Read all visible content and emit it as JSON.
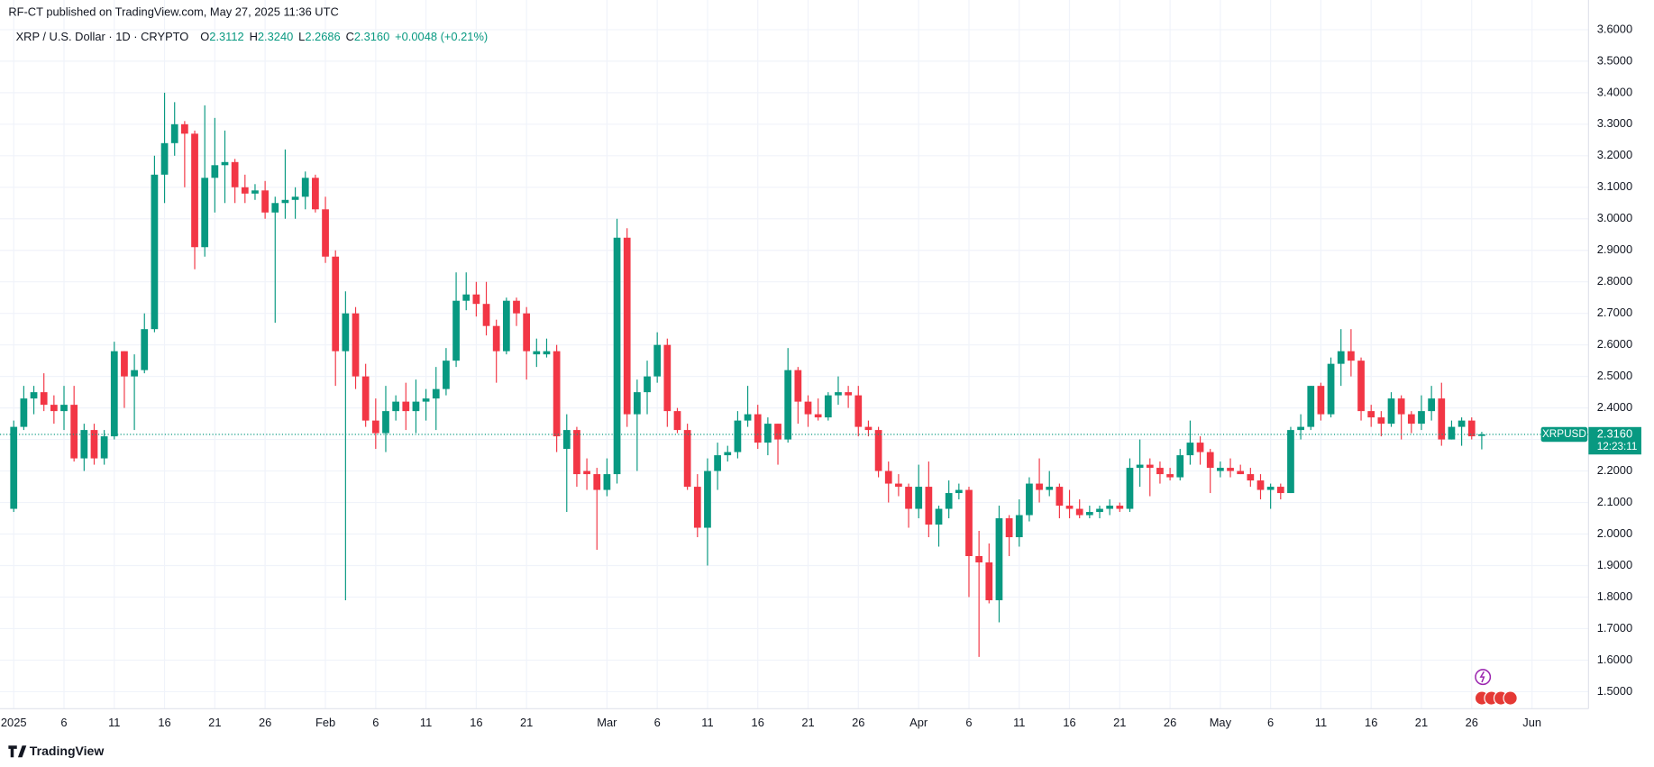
{
  "header": {
    "published": "RF-CT published on TradingView.com, May 27, 2025 11:36 UTC",
    "brand": "TradingView"
  },
  "chart_data": {
    "type": "candlestick",
    "symbol": "XRP / U.S. Dollar · 1D · CRYPTO",
    "legend_items": [
      {
        "key": "O",
        "value": "2.3112"
      },
      {
        "key": "H",
        "value": "2.3240"
      },
      {
        "key": "L",
        "value": "2.2686"
      },
      {
        "key": "C",
        "value": "2.3160"
      }
    ],
    "change": "+0.0048 (+0.21%)",
    "up_color": "#089981",
    "down_color": "#f23645",
    "last_price": {
      "value": 2.316,
      "label": "2.3160"
    },
    "symbol_tag": "XRPUSD",
    "countdown": "12:23:11",
    "grid": true,
    "ylim": [
      1.446,
      3.694
    ],
    "yticks": [
      {
        "value": 1.5,
        "label": "1.5000"
      },
      {
        "value": 1.6,
        "label": "1.6000"
      },
      {
        "value": 1.7,
        "label": "1.7000"
      },
      {
        "value": 1.8,
        "label": "1.8000"
      },
      {
        "value": 1.9,
        "label": "1.9000"
      },
      {
        "value": 2.0,
        "label": "2.0000"
      },
      {
        "value": 2.1,
        "label": "2.1000"
      },
      {
        "value": 2.2,
        "label": "2.2000"
      },
      {
        "value": 2.3,
        "label": "2.3000"
      },
      {
        "value": 2.4,
        "label": "2.4000"
      },
      {
        "value": 2.5,
        "label": "2.5000"
      },
      {
        "value": 2.6,
        "label": "2.6000"
      },
      {
        "value": 2.7,
        "label": "2.7000"
      },
      {
        "value": 2.8,
        "label": "2.8000"
      },
      {
        "value": 2.9,
        "label": "2.9000"
      },
      {
        "value": 3.0,
        "label": "3.0000"
      },
      {
        "value": 3.1,
        "label": "3.1000"
      },
      {
        "value": 3.2,
        "label": "3.2000"
      },
      {
        "value": 3.3,
        "label": "3.3000"
      },
      {
        "value": 3.4,
        "label": "3.4000"
      },
      {
        "value": 3.5,
        "label": "3.5000"
      },
      {
        "value": 3.6,
        "label": "3.6000"
      }
    ],
    "xticks": [
      {
        "value": "2025-01-01",
        "label": "2025"
      },
      {
        "value": "2025-01-06",
        "label": "6"
      },
      {
        "value": "2025-01-11",
        "label": "11"
      },
      {
        "value": "2025-01-16",
        "label": "16"
      },
      {
        "value": "2025-01-21",
        "label": "21"
      },
      {
        "value": "2025-01-26",
        "label": "26"
      },
      {
        "value": "2025-02-01",
        "label": "Feb"
      },
      {
        "value": "2025-02-06",
        "label": "6"
      },
      {
        "value": "2025-02-11",
        "label": "11"
      },
      {
        "value": "2025-02-16",
        "label": "16"
      },
      {
        "value": "2025-02-21",
        "label": "21"
      },
      {
        "value": "2025-03-01",
        "label": "Mar"
      },
      {
        "value": "2025-03-06",
        "label": "6"
      },
      {
        "value": "2025-03-11",
        "label": "11"
      },
      {
        "value": "2025-03-16",
        "label": "16"
      },
      {
        "value": "2025-03-21",
        "label": "21"
      },
      {
        "value": "2025-03-26",
        "label": "26"
      },
      {
        "value": "2025-04-01",
        "label": "Apr"
      },
      {
        "value": "2025-04-06",
        "label": "6"
      },
      {
        "value": "2025-04-11",
        "label": "11"
      },
      {
        "value": "2025-04-16",
        "label": "16"
      },
      {
        "value": "2025-04-21",
        "label": "21"
      },
      {
        "value": "2025-04-26",
        "label": "26"
      },
      {
        "value": "2025-05-01",
        "label": "May"
      },
      {
        "value": "2025-05-06",
        "label": "6"
      },
      {
        "value": "2025-05-11",
        "label": "11"
      },
      {
        "value": "2025-05-16",
        "label": "16"
      },
      {
        "value": "2025-05-21",
        "label": "21"
      },
      {
        "value": "2025-05-26",
        "label": "26"
      },
      {
        "value": "2025-06-01",
        "label": "Jun"
      }
    ],
    "x": [
      "2025-01-01",
      "2025-01-02",
      "2025-01-03",
      "2025-01-04",
      "2025-01-05",
      "2025-01-06",
      "2025-01-07",
      "2025-01-08",
      "2025-01-09",
      "2025-01-10",
      "2025-01-11",
      "2025-01-12",
      "2025-01-13",
      "2025-01-14",
      "2025-01-15",
      "2025-01-16",
      "2025-01-17",
      "2025-01-18",
      "2025-01-19",
      "2025-01-20",
      "2025-01-21",
      "2025-01-22",
      "2025-01-23",
      "2025-01-24",
      "2025-01-25",
      "2025-01-26",
      "2025-01-27",
      "2025-01-28",
      "2025-01-29",
      "2025-01-30",
      "2025-01-31",
      "2025-02-01",
      "2025-02-02",
      "2025-02-03",
      "2025-02-04",
      "2025-02-05",
      "2025-02-06",
      "2025-02-07",
      "2025-02-08",
      "2025-02-09",
      "2025-02-10",
      "2025-02-11",
      "2025-02-12",
      "2025-02-13",
      "2025-02-14",
      "2025-02-15",
      "2025-02-16",
      "2025-02-17",
      "2025-02-18",
      "2025-02-19",
      "2025-02-20",
      "2025-02-21",
      "2025-02-22",
      "2025-02-23",
      "2025-02-24",
      "2025-02-25",
      "2025-02-26",
      "2025-02-27",
      "2025-02-28",
      "2025-03-01",
      "2025-03-02",
      "2025-03-03",
      "2025-03-04",
      "2025-03-05",
      "2025-03-06",
      "2025-03-07",
      "2025-03-08",
      "2025-03-09",
      "2025-03-10",
      "2025-03-11",
      "2025-03-12",
      "2025-03-13",
      "2025-03-14",
      "2025-03-15",
      "2025-03-16",
      "2025-03-17",
      "2025-03-18",
      "2025-03-19",
      "2025-03-20",
      "2025-03-21",
      "2025-03-22",
      "2025-03-23",
      "2025-03-24",
      "2025-03-25",
      "2025-03-26",
      "2025-03-27",
      "2025-03-28",
      "2025-03-29",
      "2025-03-30",
      "2025-03-31",
      "2025-04-01",
      "2025-04-02",
      "2025-04-03",
      "2025-04-04",
      "2025-04-05",
      "2025-04-06",
      "2025-04-07",
      "2025-04-08",
      "2025-04-09",
      "2025-04-10",
      "2025-04-11",
      "2025-04-12",
      "2025-04-13",
      "2025-04-14",
      "2025-04-15",
      "2025-04-16",
      "2025-04-17",
      "2025-04-18",
      "2025-04-19",
      "2025-04-20",
      "2025-04-21",
      "2025-04-22",
      "2025-04-23",
      "2025-04-24",
      "2025-04-25",
      "2025-04-26",
      "2025-04-27",
      "2025-04-28",
      "2025-04-29",
      "2025-04-30",
      "2025-05-01",
      "2025-05-02",
      "2025-05-03",
      "2025-05-04",
      "2025-05-05",
      "2025-05-06",
      "2025-05-07",
      "2025-05-08",
      "2025-05-09",
      "2025-05-10",
      "2025-05-11",
      "2025-05-12",
      "2025-05-13",
      "2025-05-14",
      "2025-05-15",
      "2025-05-16",
      "2025-05-17",
      "2025-05-18",
      "2025-05-19",
      "2025-05-20",
      "2025-05-21",
      "2025-05-22",
      "2025-05-23",
      "2025-05-24",
      "2025-05-25",
      "2025-05-26",
      "2025-05-27"
    ],
    "ohlc": [
      [
        2.08,
        2.36,
        2.07,
        2.34
      ],
      [
        2.34,
        2.47,
        2.33,
        2.43
      ],
      [
        2.43,
        2.47,
        2.38,
        2.45
      ],
      [
        2.45,
        2.51,
        2.39,
        2.41
      ],
      [
        2.41,
        2.44,
        2.35,
        2.39
      ],
      [
        2.39,
        2.47,
        2.33,
        2.41
      ],
      [
        2.41,
        2.47,
        2.23,
        2.24
      ],
      [
        2.24,
        2.35,
        2.2,
        2.33
      ],
      [
        2.33,
        2.35,
        2.22,
        2.24
      ],
      [
        2.24,
        2.33,
        2.22,
        2.31
      ],
      [
        2.31,
        2.61,
        2.3,
        2.58
      ],
      [
        2.58,
        2.58,
        2.4,
        2.5
      ],
      [
        2.5,
        2.57,
        2.33,
        2.52
      ],
      [
        2.52,
        2.7,
        2.51,
        2.65
      ],
      [
        2.65,
        3.2,
        2.64,
        3.14
      ],
      [
        3.14,
        3.4,
        3.05,
        3.24
      ],
      [
        3.24,
        3.37,
        3.2,
        3.3
      ],
      [
        3.3,
        3.31,
        3.1,
        3.27
      ],
      [
        3.27,
        3.28,
        2.84,
        2.91
      ],
      [
        2.91,
        3.36,
        2.88,
        3.13
      ],
      [
        3.13,
        3.32,
        3.02,
        3.17
      ],
      [
        3.17,
        3.28,
        3.05,
        3.18
      ],
      [
        3.18,
        3.19,
        3.05,
        3.1
      ],
      [
        3.1,
        3.14,
        3.05,
        3.08
      ],
      [
        3.08,
        3.11,
        3.06,
        3.09
      ],
      [
        3.09,
        3.12,
        3.0,
        3.02
      ],
      [
        3.02,
        3.07,
        2.67,
        3.05
      ],
      [
        3.05,
        3.22,
        3.0,
        3.06
      ],
      [
        3.06,
        3.1,
        3.0,
        3.07
      ],
      [
        3.07,
        3.15,
        3.03,
        3.13
      ],
      [
        3.13,
        3.14,
        3.02,
        3.03
      ],
      [
        3.03,
        3.07,
        2.86,
        2.88
      ],
      [
        2.88,
        2.9,
        2.47,
        2.58
      ],
      [
        2.58,
        2.77,
        1.79,
        2.7
      ],
      [
        2.7,
        2.72,
        2.46,
        2.5
      ],
      [
        2.5,
        2.54,
        2.34,
        2.36
      ],
      [
        2.36,
        2.43,
        2.27,
        2.32
      ],
      [
        2.32,
        2.47,
        2.26,
        2.39
      ],
      [
        2.39,
        2.44,
        2.36,
        2.42
      ],
      [
        2.42,
        2.48,
        2.33,
        2.39
      ],
      [
        2.39,
        2.49,
        2.32,
        2.42
      ],
      [
        2.42,
        2.46,
        2.36,
        2.43
      ],
      [
        2.43,
        2.53,
        2.33,
        2.46
      ],
      [
        2.46,
        2.59,
        2.44,
        2.55
      ],
      [
        2.55,
        2.83,
        2.53,
        2.74
      ],
      [
        2.74,
        2.83,
        2.71,
        2.76
      ],
      [
        2.76,
        2.8,
        2.69,
        2.73
      ],
      [
        2.73,
        2.8,
        2.63,
        2.66
      ],
      [
        2.66,
        2.68,
        2.48,
        2.58
      ],
      [
        2.58,
        2.75,
        2.57,
        2.74
      ],
      [
        2.74,
        2.75,
        2.66,
        2.7
      ],
      [
        2.7,
        2.72,
        2.49,
        2.58
      ],
      [
        2.57,
        2.62,
        2.53,
        2.58
      ],
      [
        2.57,
        2.62,
        2.56,
        2.58
      ],
      [
        2.58,
        2.6,
        2.26,
        2.31
      ],
      [
        2.27,
        2.38,
        2.07,
        2.33
      ],
      [
        2.33,
        2.34,
        2.15,
        2.19
      ],
      [
        2.2,
        2.24,
        2.14,
        2.19
      ],
      [
        2.19,
        2.21,
        1.95,
        2.14
      ],
      [
        2.14,
        2.24,
        2.12,
        2.19
      ],
      [
        2.19,
        3.0,
        2.16,
        2.94
      ],
      [
        2.94,
        2.97,
        2.34,
        2.38
      ],
      [
        2.38,
        2.49,
        2.2,
        2.45
      ],
      [
        2.45,
        2.55,
        2.38,
        2.5
      ],
      [
        2.5,
        2.64,
        2.48,
        2.6
      ],
      [
        2.6,
        2.62,
        2.34,
        2.39
      ],
      [
        2.39,
        2.4,
        2.32,
        2.33
      ],
      [
        2.33,
        2.35,
        2.14,
        2.15
      ],
      [
        2.15,
        2.19,
        1.99,
        2.02
      ],
      [
        2.02,
        2.24,
        1.9,
        2.2
      ],
      [
        2.2,
        2.29,
        2.14,
        2.25
      ],
      [
        2.25,
        2.28,
        2.23,
        2.26
      ],
      [
        2.26,
        2.39,
        2.24,
        2.36
      ],
      [
        2.36,
        2.47,
        2.34,
        2.38
      ],
      [
        2.38,
        2.41,
        2.27,
        2.29
      ],
      [
        2.29,
        2.37,
        2.25,
        2.35
      ],
      [
        2.35,
        2.35,
        2.22,
        2.3
      ],
      [
        2.3,
        2.59,
        2.29,
        2.52
      ],
      [
        2.52,
        2.53,
        2.35,
        2.42
      ],
      [
        2.42,
        2.44,
        2.34,
        2.38
      ],
      [
        2.38,
        2.43,
        2.36,
        2.37
      ],
      [
        2.37,
        2.45,
        2.36,
        2.44
      ],
      [
        2.44,
        2.5,
        2.41,
        2.45
      ],
      [
        2.45,
        2.47,
        2.4,
        2.44
      ],
      [
        2.44,
        2.47,
        2.31,
        2.34
      ],
      [
        2.34,
        2.36,
        2.31,
        2.33
      ],
      [
        2.33,
        2.34,
        2.18,
        2.2
      ],
      [
        2.2,
        2.23,
        2.1,
        2.16
      ],
      [
        2.16,
        2.19,
        2.12,
        2.15
      ],
      [
        2.15,
        2.16,
        2.02,
        2.08
      ],
      [
        2.08,
        2.22,
        2.05,
        2.15
      ],
      [
        2.15,
        2.23,
        1.99,
        2.03
      ],
      [
        2.03,
        2.09,
        1.96,
        2.08
      ],
      [
        2.08,
        2.17,
        2.05,
        2.13
      ],
      [
        2.13,
        2.16,
        2.11,
        2.14
      ],
      [
        2.14,
        2.15,
        1.8,
        1.93
      ],
      [
        1.93,
        2.01,
        1.61,
        1.91
      ],
      [
        1.91,
        1.97,
        1.78,
        1.79
      ],
      [
        1.79,
        2.09,
        1.72,
        2.05
      ],
      [
        2.05,
        2.06,
        1.93,
        1.99
      ],
      [
        1.99,
        2.11,
        1.96,
        2.06
      ],
      [
        2.06,
        2.18,
        2.04,
        2.16
      ],
      [
        2.16,
        2.24,
        2.1,
        2.14
      ],
      [
        2.14,
        2.2,
        2.12,
        2.15
      ],
      [
        2.15,
        2.16,
        2.05,
        2.09
      ],
      [
        2.09,
        2.14,
        2.05,
        2.08
      ],
      [
        2.08,
        2.11,
        2.05,
        2.06
      ],
      [
        2.06,
        2.09,
        2.05,
        2.07
      ],
      [
        2.07,
        2.09,
        2.05,
        2.08
      ],
      [
        2.08,
        2.11,
        2.06,
        2.09
      ],
      [
        2.09,
        2.1,
        2.07,
        2.08
      ],
      [
        2.08,
        2.24,
        2.07,
        2.21
      ],
      [
        2.21,
        2.3,
        2.15,
        2.22
      ],
      [
        2.22,
        2.24,
        2.12,
        2.21
      ],
      [
        2.21,
        2.23,
        2.16,
        2.19
      ],
      [
        2.19,
        2.21,
        2.17,
        2.18
      ],
      [
        2.18,
        2.27,
        2.17,
        2.25
      ],
      [
        2.25,
        2.36,
        2.22,
        2.29
      ],
      [
        2.29,
        2.31,
        2.22,
        2.26
      ],
      [
        2.26,
        2.27,
        2.13,
        2.21
      ],
      [
        2.2,
        2.23,
        2.18,
        2.21
      ],
      [
        2.21,
        2.24,
        2.18,
        2.2
      ],
      [
        2.2,
        2.22,
        2.19,
        2.19
      ],
      [
        2.19,
        2.21,
        2.15,
        2.17
      ],
      [
        2.17,
        2.19,
        2.11,
        2.14
      ],
      [
        2.14,
        2.16,
        2.08,
        2.15
      ],
      [
        2.15,
        2.16,
        2.11,
        2.13
      ],
      [
        2.13,
        2.34,
        2.13,
        2.33
      ],
      [
        2.33,
        2.38,
        2.3,
        2.34
      ],
      [
        2.34,
        2.47,
        2.33,
        2.47
      ],
      [
        2.47,
        2.48,
        2.36,
        2.38
      ],
      [
        2.38,
        2.56,
        2.37,
        2.54
      ],
      [
        2.54,
        2.65,
        2.47,
        2.58
      ],
      [
        2.58,
        2.65,
        2.5,
        2.55
      ],
      [
        2.55,
        2.56,
        2.36,
        2.39
      ],
      [
        2.39,
        2.41,
        2.34,
        2.37
      ],
      [
        2.37,
        2.39,
        2.31,
        2.35
      ],
      [
        2.35,
        2.45,
        2.34,
        2.43
      ],
      [
        2.43,
        2.44,
        2.3,
        2.38
      ],
      [
        2.38,
        2.39,
        2.32,
        2.35
      ],
      [
        2.35,
        2.44,
        2.33,
        2.39
      ],
      [
        2.39,
        2.47,
        2.36,
        2.43
      ],
      [
        2.43,
        2.48,
        2.28,
        2.3
      ],
      [
        2.3,
        2.36,
        2.3,
        2.34
      ],
      [
        2.34,
        2.37,
        2.28,
        2.36
      ],
      [
        2.36,
        2.37,
        2.3,
        2.31
      ],
      [
        2.3112,
        2.324,
        2.2686,
        2.316
      ]
    ]
  }
}
